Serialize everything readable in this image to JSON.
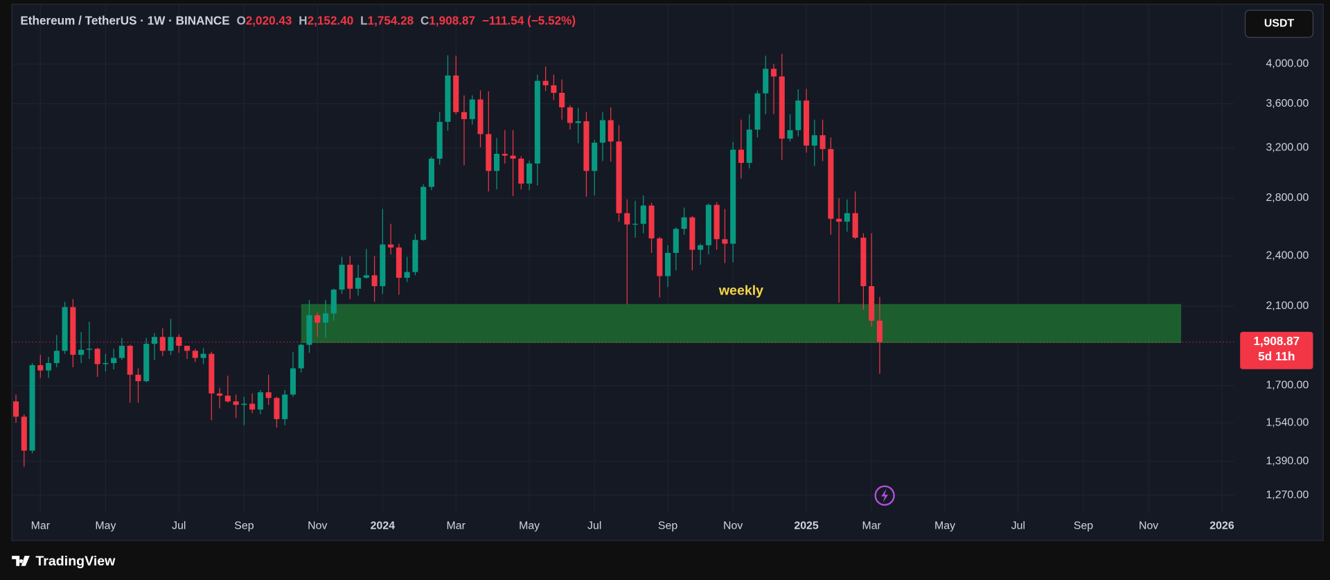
{
  "header": {
    "symbol": "Ethereum / TetherUS · 1W · BINANCE",
    "o_label": "O",
    "o": "2,020.43",
    "h_label": "H",
    "h": "2,152.40",
    "l_label": "L",
    "l": "1,754.28",
    "c_label": "C",
    "c": "1,908.87",
    "change": "−111.54 (−5.52%)"
  },
  "currency": "USDT",
  "brand": "TradingView",
  "chart_data": {
    "type": "candlestick",
    "log_scale": true,
    "grid": true,
    "up_color": "#089981",
    "down_color": "#f23645",
    "ylim": [
      1210,
      4690
    ],
    "yticks": [
      {
        "value": 4000,
        "label": "4,000.00"
      },
      {
        "value": 3600,
        "label": "3,600.00"
      },
      {
        "value": 3200,
        "label": "3,200.00"
      },
      {
        "value": 2800,
        "label": "2,800.00"
      },
      {
        "value": 2400,
        "label": "2,400.00"
      },
      {
        "value": 2100,
        "label": "2,100.00"
      },
      {
        "value": 1700,
        "label": "1,700.00"
      },
      {
        "value": 1540,
        "label": "1,540.00"
      },
      {
        "value": 1390,
        "label": "1,390.00"
      },
      {
        "value": 1270,
        "label": "1,270.00"
      }
    ],
    "categories": [
      null,
      null,
      null,
      "Mar",
      null,
      null,
      null,
      null,
      null,
      null,
      null,
      "May",
      null,
      null,
      null,
      null,
      null,
      null,
      null,
      null,
      "Jul",
      null,
      null,
      null,
      null,
      null,
      null,
      null,
      "Sep",
      null,
      null,
      null,
      null,
      null,
      null,
      null,
      null,
      "Nov",
      null,
      null,
      null,
      null,
      null,
      null,
      null,
      "2024",
      null,
      null,
      null,
      null,
      null,
      null,
      null,
      null,
      "Mar",
      null,
      null,
      null,
      null,
      null,
      null,
      null,
      null,
      "May",
      null,
      null,
      null,
      null,
      null,
      null,
      null,
      "Jul",
      null,
      null,
      null,
      null,
      null,
      null,
      null,
      null,
      "Sep",
      null,
      null,
      null,
      null,
      null,
      null,
      null,
      "Nov",
      null,
      null,
      null,
      null,
      null,
      null,
      null,
      null,
      "2025",
      null,
      null,
      null,
      null,
      null,
      null,
      null,
      "Mar",
      null,
      null,
      null,
      null,
      null,
      null,
      null,
      null,
      "May",
      null,
      null,
      null,
      null,
      null,
      null,
      null,
      null,
      "Jul",
      null,
      null,
      null,
      null,
      null,
      null,
      null,
      "Sep",
      null,
      null,
      null,
      null,
      null,
      null,
      null,
      "Nov",
      null,
      null,
      null,
      null,
      null,
      null,
      null,
      null,
      "2026",
      null
    ],
    "open": [
      1630,
      1565,
      1430,
      1795,
      1770,
      1805,
      1865,
      2095,
      1845,
      1870,
      1875,
      1800,
      1805,
      1830,
      1890,
      1750,
      1720,
      1900,
      1935,
      1865,
      1935,
      1890,
      1865,
      1830,
      1850,
      1665,
      1655,
      1630,
      1615,
      1620,
      1595,
      1670,
      1645,
      1555,
      1660,
      1780,
      1895,
      2050,
      2010,
      2060,
      2195,
      2345,
      2200,
      2265,
      2280,
      2215,
      2475,
      2455,
      2265,
      2300,
      2505,
      2885,
      3110,
      3430,
      3880,
      3520,
      3455,
      3640,
      3320,
      3010,
      3150,
      3135,
      3110,
      2910,
      3070,
      3825,
      3780,
      3705,
      3565,
      3420,
      3435,
      3010,
      3245,
      3445,
      3255,
      2690,
      2610,
      2615,
      2745,
      2515,
      2275,
      2420,
      2580,
      2660,
      2440,
      2470,
      2750,
      2510,
      2480,
      3185,
      3075,
      3360,
      3700,
      3950,
      3870,
      3280,
      3355,
      3630,
      3220,
      3310,
      3190,
      2650,
      2630,
      2690,
      2520,
      2215,
      2020.43,
      null,
      null,
      null,
      null,
      null,
      null,
      null,
      null,
      null,
      null,
      null,
      null,
      null,
      null,
      null,
      null,
      null,
      null,
      null,
      null,
      null,
      null,
      null,
      null,
      null,
      null,
      null,
      null,
      null,
      null,
      null,
      null,
      null,
      null,
      null,
      null,
      null,
      null,
      null,
      null,
      null,
      null,
      null
    ],
    "high": [
      1660,
      1575,
      1805,
      1845,
      1835,
      1945,
      2125,
      2140,
      1960,
      2015,
      1880,
      1850,
      1875,
      1930,
      1895,
      1780,
      1930,
      1955,
      1980,
      2030,
      1950,
      1890,
      1875,
      1880,
      1860,
      1690,
      1745,
      1660,
      1650,
      1665,
      1680,
      1750,
      1650,
      1680,
      1860,
      1900,
      2135,
      2065,
      2135,
      2200,
      2395,
      2400,
      2345,
      2445,
      2400,
      2720,
      2615,
      2480,
      2395,
      2545,
      2905,
      3125,
      3520,
      4095,
      4090,
      3680,
      3680,
      3730,
      3720,
      3285,
      3355,
      3355,
      3130,
      3095,
      3890,
      3975,
      3890,
      3840,
      3585,
      3560,
      3520,
      3270,
      3520,
      3565,
      3400,
      2790,
      2780,
      2820,
      2765,
      2525,
      2470,
      2590,
      2730,
      2670,
      2480,
      2760,
      2770,
      2720,
      3250,
      3450,
      3500,
      3730,
      4090,
      4000,
      4110,
      3500,
      3740,
      3745,
      3450,
      3450,
      3290,
      2800,
      2790,
      2850,
      2550,
      2550,
      2152.4,
      null,
      null,
      null,
      null,
      null,
      null,
      null,
      null,
      null,
      null,
      null,
      null,
      null,
      null,
      null,
      null,
      null,
      null,
      null,
      null,
      null,
      null,
      null,
      null,
      null,
      null,
      null,
      null,
      null,
      null,
      null,
      null,
      null,
      null,
      null,
      null,
      null,
      null,
      null,
      null,
      null,
      null,
      null
    ],
    "low": [
      1540,
      1370,
      1420,
      1735,
      1735,
      1785,
      1850,
      1785,
      1805,
      1825,
      1740,
      1765,
      1775,
      1820,
      1625,
      1625,
      1715,
      1820,
      1840,
      1845,
      1855,
      1825,
      1810,
      1800,
      1550,
      1600,
      1625,
      1560,
      1530,
      1580,
      1575,
      1615,
      1520,
      1530,
      1650,
      1760,
      1855,
      1935,
      1930,
      2020,
      2170,
      2140,
      2160,
      2260,
      2125,
      2170,
      2410,
      2165,
      2240,
      2280,
      2500,
      2860,
      3060,
      3350,
      3500,
      3055,
      3405,
      3205,
      2850,
      2865,
      3070,
      2815,
      2865,
      2860,
      2895,
      3725,
      3635,
      3450,
      3360,
      3240,
      2810,
      2820,
      3090,
      3085,
      2630,
      2110,
      2520,
      2550,
      2420,
      2150,
      2210,
      2310,
      2540,
      2310,
      2345,
      2410,
      2440,
      2355,
      2360,
      2950,
      3030,
      3290,
      3500,
      3500,
      3100,
      3255,
      3300,
      3160,
      3050,
      3090,
      2540,
      2120,
      2560,
      2510,
      2080,
      1990,
      1754.28,
      null,
      null,
      null,
      null,
      null,
      null,
      null,
      null,
      null,
      null,
      null,
      null,
      null,
      null,
      null,
      null,
      null,
      null,
      null,
      null,
      null,
      null,
      null,
      null,
      null,
      null,
      null,
      null,
      null,
      null,
      null,
      null,
      null,
      null,
      null,
      null,
      null,
      null,
      null,
      null,
      null,
      null,
      null
    ],
    "close": [
      1565,
      1430,
      1795,
      1770,
      1805,
      1865,
      2095,
      1845,
      1870,
      1875,
      1800,
      1805,
      1830,
      1890,
      1750,
      1720,
      1900,
      1935,
      1865,
      1935,
      1890,
      1865,
      1830,
      1850,
      1665,
      1655,
      1630,
      1615,
      1620,
      1595,
      1670,
      1645,
      1555,
      1660,
      1780,
      1895,
      2050,
      2010,
      2060,
      2195,
      2345,
      2200,
      2265,
      2280,
      2215,
      2475,
      2455,
      2265,
      2300,
      2505,
      2885,
      3110,
      3430,
      3880,
      3520,
      3455,
      3640,
      3320,
      3010,
      3150,
      3135,
      3110,
      2910,
      3070,
      3825,
      3780,
      3705,
      3565,
      3420,
      3435,
      3010,
      3245,
      3445,
      3255,
      2690,
      2610,
      2615,
      2745,
      2515,
      2275,
      2420,
      2580,
      2660,
      2440,
      2470,
      2750,
      2510,
      2480,
      3185,
      3075,
      3360,
      3700,
      3950,
      3870,
      3280,
      3355,
      3630,
      3220,
      3310,
      3190,
      2650,
      2630,
      2690,
      2520,
      2215,
      2020.43,
      1908.87,
      null,
      null,
      null,
      null,
      null,
      null,
      null,
      null,
      null,
      null,
      null,
      null,
      null,
      null,
      null,
      null,
      null,
      null,
      null,
      null,
      null,
      null,
      null,
      null,
      null,
      null,
      null,
      null,
      null,
      null,
      null,
      null,
      null,
      null,
      null,
      null,
      null,
      null,
      null,
      null,
      null,
      null,
      null
    ],
    "zone": {
      "label": "weekly",
      "y_range": [
        1904,
        2112
      ],
      "x_range": [
        35,
        143
      ],
      "color": "#1d6b30"
    },
    "last_price": {
      "value": 1908.87,
      "label": "1,908.87",
      "color": "#f23645"
    },
    "countdown": "5d 11h"
  }
}
